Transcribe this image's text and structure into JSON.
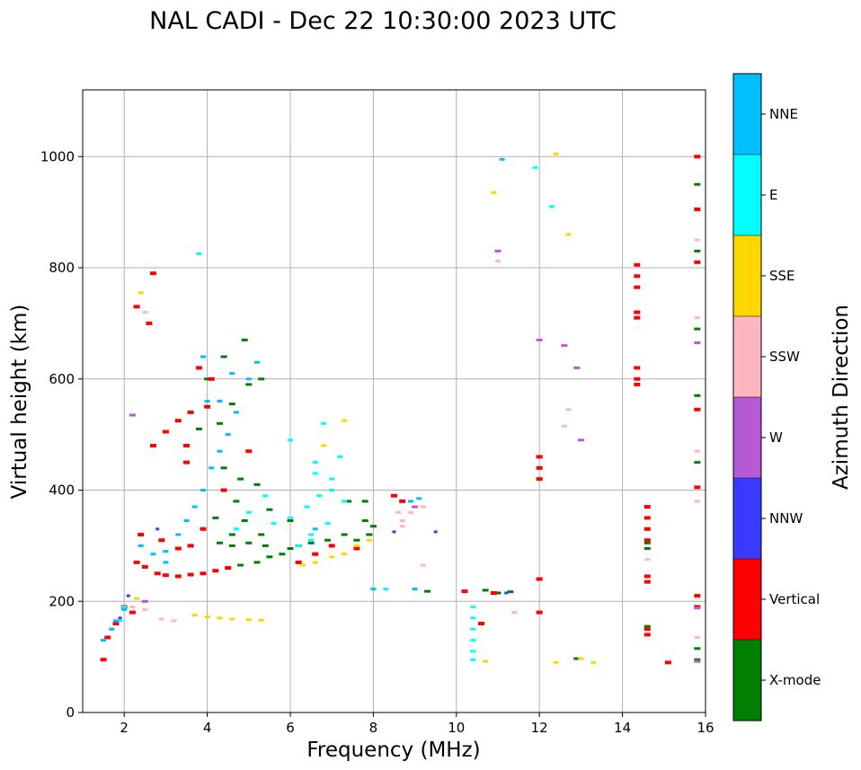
{
  "chart_data": {
    "type": "scatter",
    "title": "NAL CADI - Dec 22 10:30:00 2023 UTC",
    "xlabel": "Frequency (MHz)",
    "ylabel": "Virtual height (km)",
    "xlim": [
      1,
      16
    ],
    "ylim": [
      0,
      1120
    ],
    "xticks": [
      2,
      4,
      6,
      8,
      10,
      12,
      14,
      16
    ],
    "yticks": [
      0,
      200,
      400,
      600,
      800,
      1000
    ],
    "grid": true,
    "colorbar": {
      "label": "Azimuth Direction",
      "categories": [
        {
          "name": "X-mode",
          "color": "#008000"
        },
        {
          "name": "Vertical",
          "color": "#ff0000"
        },
        {
          "name": "NNW",
          "color": "#3a3aff"
        },
        {
          "name": "W",
          "color": "#b55ad4"
        },
        {
          "name": "SSW",
          "color": "#ffb6c1"
        },
        {
          "name": "SSE",
          "color": "#ffd700"
        },
        {
          "name": "E",
          "color": "#00ffff"
        },
        {
          "name": "NNE",
          "color": "#00bfff"
        }
      ]
    },
    "series": [
      {
        "name": "X-mode",
        "color": "#008000",
        "points": [
          [
            4.5,
            260
          ],
          [
            4.8,
            265
          ],
          [
            5.2,
            270
          ],
          [
            5.5,
            280
          ],
          [
            5.8,
            285
          ],
          [
            6.2,
            300
          ],
          [
            6.5,
            305
          ],
          [
            6.9,
            310
          ],
          [
            7.3,
            320
          ],
          [
            7.6,
            310
          ],
          [
            7.9,
            320
          ],
          [
            8.0,
            335
          ],
          [
            7.8,
            345
          ],
          [
            4.3,
            305
          ],
          [
            4.6,
            300
          ],
          [
            5.0,
            305
          ],
          [
            5.4,
            300
          ],
          [
            6.0,
            295
          ],
          [
            4.9,
            345
          ],
          [
            5.3,
            320
          ],
          [
            4.2,
            350
          ],
          [
            4.7,
            380
          ],
          [
            5.5,
            365
          ],
          [
            6.0,
            345
          ],
          [
            4.4,
            440
          ],
          [
            4.8,
            420
          ],
          [
            5.2,
            410
          ],
          [
            4.3,
            520
          ],
          [
            4.6,
            555
          ],
          [
            5.0,
            590
          ],
          [
            4.4,
            640
          ],
          [
            4.9,
            670
          ],
          [
            5.3,
            600
          ],
          [
            7.4,
            380
          ],
          [
            7.8,
            380
          ],
          [
            11.0,
            215
          ],
          [
            10.7,
            220
          ],
          [
            11.3,
            217
          ],
          [
            9.3,
            218
          ],
          [
            14.6,
            295
          ],
          [
            14.6,
            305
          ],
          [
            14.6,
            155
          ],
          [
            15.8,
            95
          ],
          [
            15.8,
            115
          ],
          [
            15.8,
            450
          ],
          [
            15.8,
            545
          ],
          [
            15.8,
            570
          ],
          [
            15.8,
            690
          ],
          [
            15.8,
            950
          ],
          [
            15.8,
            830
          ],
          [
            12.9,
            97
          ],
          [
            4.0,
            600
          ],
          [
            3.8,
            510
          ],
          [
            4.6,
            320
          ]
        ],
        "size": [
          3,
          7
        ]
      },
      {
        "name": "Vertical",
        "color": "#ff0000",
        "points": [
          [
            2.3,
            270
          ],
          [
            2.5,
            262
          ],
          [
            2.8,
            250
          ],
          [
            3.0,
            247
          ],
          [
            3.3,
            245
          ],
          [
            3.6,
            248
          ],
          [
            3.9,
            250
          ],
          [
            4.2,
            255
          ],
          [
            4.5,
            260
          ],
          [
            2.4,
            320
          ],
          [
            2.9,
            310
          ],
          [
            3.3,
            295
          ],
          [
            3.6,
            300
          ],
          [
            3.9,
            330
          ],
          [
            2.7,
            480
          ],
          [
            3.0,
            505
          ],
          [
            3.3,
            525
          ],
          [
            3.6,
            540
          ],
          [
            4.0,
            550
          ],
          [
            3.8,
            620
          ],
          [
            4.1,
            600
          ],
          [
            3.5,
            480
          ],
          [
            4.4,
            400
          ],
          [
            5.0,
            470
          ],
          [
            6.2,
            270
          ],
          [
            6.6,
            285
          ],
          [
            7.0,
            300
          ],
          [
            7.6,
            295
          ],
          [
            8.5,
            390
          ],
          [
            8.7,
            380
          ],
          [
            2.0,
            190
          ],
          [
            2.2,
            180
          ],
          [
            1.6,
            135
          ],
          [
            1.8,
            160
          ],
          [
            1.5,
            95
          ],
          [
            12.0,
            180
          ],
          [
            12.0,
            240
          ],
          [
            12.0,
            420
          ],
          [
            12.0,
            440
          ],
          [
            12.0,
            460
          ],
          [
            14.6,
            140
          ],
          [
            14.6,
            150
          ],
          [
            14.6,
            245
          ],
          [
            14.6,
            235
          ],
          [
            14.6,
            310
          ],
          [
            14.6,
            330
          ],
          [
            14.6,
            350
          ],
          [
            14.6,
            370
          ],
          [
            14.35,
            785
          ],
          [
            14.35,
            805
          ],
          [
            14.35,
            765
          ],
          [
            14.35,
            720
          ],
          [
            14.35,
            710
          ],
          [
            14.35,
            620
          ],
          [
            14.35,
            600
          ],
          [
            14.35,
            590
          ],
          [
            15.8,
            1000
          ],
          [
            15.8,
            905
          ],
          [
            15.8,
            810
          ],
          [
            15.8,
            545
          ],
          [
            15.8,
            405
          ],
          [
            15.8,
            210
          ],
          [
            15.8,
            190
          ],
          [
            15.1,
            90
          ],
          [
            10.2,
            218
          ],
          [
            10.6,
            160
          ],
          [
            10.9,
            215
          ],
          [
            2.6,
            700
          ],
          [
            2.3,
            730
          ],
          [
            2.7,
            790
          ],
          [
            3.5,
            450
          ]
        ],
        "size": [
          4,
          7
        ]
      },
      {
        "name": "NNW",
        "color": "#3a3aff",
        "points": [
          [
            1.7,
            150
          ],
          [
            1.9,
            170
          ],
          [
            2.1,
            210
          ],
          [
            2.4,
            300
          ],
          [
            2.8,
            330
          ],
          [
            8.5,
            325
          ],
          [
            9.5,
            325
          ],
          [
            11.2,
            215
          ]
        ],
        "size": [
          3,
          4
        ]
      },
      {
        "name": "W",
        "color": "#b55ad4",
        "points": [
          [
            12.6,
            660
          ],
          [
            12.9,
            620
          ],
          [
            13.0,
            490
          ],
          [
            15.8,
            665
          ],
          [
            15.8,
            188
          ],
          [
            15.8,
            92
          ],
          [
            12.0,
            670
          ],
          [
            11.0,
            830
          ],
          [
            2.2,
            535
          ],
          [
            9.0,
            370
          ],
          [
            2.5,
            200
          ]
        ],
        "size": [
          3,
          7
        ]
      },
      {
        "name": "SSW",
        "color": "#ffb6c1",
        "points": [
          [
            2.9,
            168
          ],
          [
            3.2,
            165
          ],
          [
            2.2,
            190
          ],
          [
            2.5,
            185
          ],
          [
            8.7,
            335
          ],
          [
            8.7,
            345
          ],
          [
            8.9,
            360
          ],
          [
            9.2,
            370
          ],
          [
            8.6,
            360
          ],
          [
            15.8,
            710
          ],
          [
            15.8,
            470
          ],
          [
            15.8,
            380
          ],
          [
            15.8,
            135
          ],
          [
            15.8,
            850
          ],
          [
            14.6,
            275
          ],
          [
            12.7,
            545
          ],
          [
            12.6,
            515
          ],
          [
            11.0,
            812
          ],
          [
            11.4,
            180
          ],
          [
            9.2,
            265
          ],
          [
            2.5,
            720
          ],
          [
            1.5,
            130
          ],
          [
            1.7,
            150
          ]
        ],
        "size": [
          3,
          6
        ]
      },
      {
        "name": "SSE",
        "color": "#ffd700",
        "points": [
          [
            3.7,
            175
          ],
          [
            4.0,
            172
          ],
          [
            4.3,
            170
          ],
          [
            4.6,
            168
          ],
          [
            5.0,
            167
          ],
          [
            5.3,
            166
          ],
          [
            6.3,
            265
          ],
          [
            6.6,
            270
          ],
          [
            7.0,
            280
          ],
          [
            7.3,
            285
          ],
          [
            7.6,
            300
          ],
          [
            7.9,
            310
          ],
          [
            6.8,
            480
          ],
          [
            7.3,
            525
          ],
          [
            12.4,
            1005
          ],
          [
            12.7,
            860
          ],
          [
            10.9,
            935
          ],
          [
            10.7,
            92
          ],
          [
            12.4,
            90
          ],
          [
            13.3,
            90
          ],
          [
            13.0,
            97
          ],
          [
            2.4,
            755
          ],
          [
            2.3,
            205
          ]
        ],
        "size": [
          3,
          6
        ]
      },
      {
        "name": "E",
        "color": "#00ffff",
        "points": [
          [
            5.6,
            340
          ],
          [
            6.0,
            350
          ],
          [
            6.4,
            370
          ],
          [
            6.7,
            390
          ],
          [
            7.0,
            400
          ],
          [
            7.3,
            380
          ],
          [
            6.6,
            430
          ],
          [
            7.0,
            420
          ],
          [
            5.4,
            390
          ],
          [
            5.0,
            360
          ],
          [
            4.7,
            330
          ],
          [
            6.2,
            300
          ],
          [
            6.5,
            320
          ],
          [
            6.9,
            340
          ],
          [
            6.6,
            450
          ],
          [
            7.2,
            460
          ],
          [
            6.8,
            520
          ],
          [
            10.4,
            95
          ],
          [
            10.4,
            110
          ],
          [
            10.4,
            130
          ],
          [
            10.4,
            150
          ],
          [
            10.4,
            170
          ],
          [
            10.4,
            190
          ],
          [
            12.3,
            910
          ],
          [
            11.9,
            980
          ],
          [
            8.3,
            222
          ],
          [
            3.8,
            825
          ],
          [
            1.9,
            165
          ],
          [
            2.0,
            190
          ],
          [
            6.0,
            490
          ],
          [
            6.5,
            310
          ]
        ],
        "size": [
          3,
          6
        ]
      },
      {
        "name": "NNE",
        "color": "#00bfff",
        "points": [
          [
            3.0,
            290
          ],
          [
            3.3,
            320
          ],
          [
            3.5,
            345
          ],
          [
            3.7,
            370
          ],
          [
            3.9,
            400
          ],
          [
            4.1,
            440
          ],
          [
            4.3,
            470
          ],
          [
            4.5,
            500
          ],
          [
            4.7,
            540
          ],
          [
            5.0,
            600
          ],
          [
            5.2,
            630
          ],
          [
            4.3,
            560
          ],
          [
            4.6,
            610
          ],
          [
            3.0,
            270
          ],
          [
            2.7,
            285
          ],
          [
            2.4,
            300
          ],
          [
            1.5,
            130
          ],
          [
            1.8,
            165
          ],
          [
            2.0,
            185
          ],
          [
            1.7,
            150
          ],
          [
            9.1,
            385
          ],
          [
            8.9,
            380
          ],
          [
            8.0,
            222
          ],
          [
            9.0,
            222
          ],
          [
            11.1,
            995
          ],
          [
            4.0,
            560
          ],
          [
            3.9,
            640
          ],
          [
            6.6,
            330
          ]
        ],
        "size": [
          3,
          6
        ]
      }
    ]
  }
}
